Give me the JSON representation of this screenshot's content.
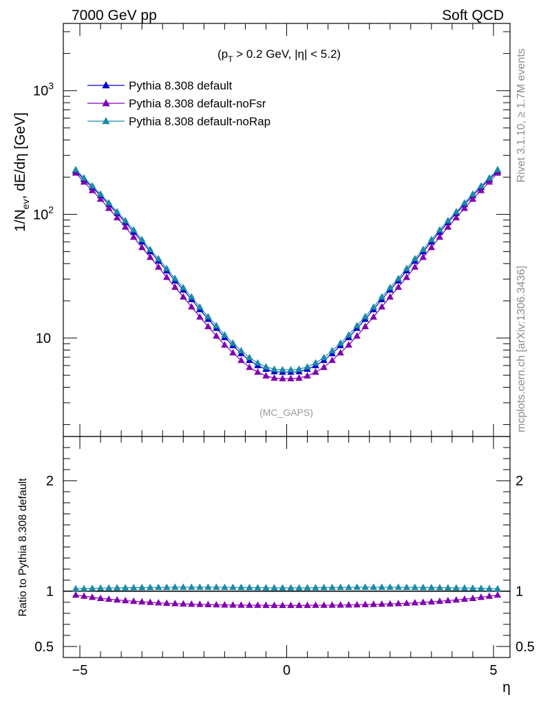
{
  "header": {
    "left": "7000 GeV pp",
    "right": "Soft QCD"
  },
  "side_text": {
    "rivet": "Rivet 3.1.10, ≥ 1.7M events",
    "mcplots": "mcplots.cern.ch [arXiv:1306.3436]"
  },
  "chart_data": [
    {
      "type": "line",
      "panel": "main",
      "annotation": "(p_T > 0.2 GeV, |η| < 5.2)",
      "watermark": "(MC_GAPS)",
      "ylabel": "1/N_ev, dE/dη [GeV]",
      "xlim": [
        -5.4,
        5.4
      ],
      "ylim": [
        1.6,
        3500
      ],
      "yscale": "log",
      "yticklabels": [
        "10",
        "10^2",
        "10^3"
      ],
      "legend_position": "top-left",
      "x": [
        -5.1,
        -4.9,
        -4.7,
        -4.5,
        -4.3,
        -4.1,
        -3.9,
        -3.7,
        -3.5,
        -3.3,
        -3.1,
        -2.9,
        -2.7,
        -2.5,
        -2.3,
        -2.1,
        -1.9,
        -1.7,
        -1.5,
        -1.3,
        -1.1,
        -0.9,
        -0.7,
        -0.5,
        -0.3,
        -0.1,
        0.1,
        0.3,
        0.5,
        0.7,
        0.9,
        1.1,
        1.3,
        1.5,
        1.7,
        1.9,
        2.1,
        2.3,
        2.5,
        2.7,
        2.9,
        3.1,
        3.3,
        3.5,
        3.7,
        3.9,
        4.1,
        4.3,
        4.5,
        4.7,
        4.9,
        5.1
      ],
      "series": [
        {
          "name": "Pythia 8.308 default",
          "color": "#0000cc",
          "marker": "triangle",
          "values": [
            224,
            192,
            165,
            142,
            120,
            102,
            86,
            72,
            60,
            50,
            42,
            35,
            29,
            24.5,
            20.5,
            17,
            14.2,
            12,
            10.1,
            8.7,
            7.5,
            6.6,
            6.0,
            5.6,
            5.35,
            5.3,
            5.3,
            5.35,
            5.6,
            6.0,
            6.6,
            7.5,
            8.7,
            10.1,
            12,
            14.2,
            17,
            20.5,
            24.5,
            29,
            35,
            42,
            50,
            60,
            72,
            86,
            102,
            120,
            142,
            165,
            192,
            224
          ]
        },
        {
          "name": "Pythia 8.308 default-noFsr",
          "color": "#8000b0",
          "marker": "triangle",
          "values": [
            216,
            183,
            156,
            133,
            112,
            94,
            79,
            65.5,
            54,
            45,
            37.5,
            31,
            25.8,
            21.5,
            17.9,
            14.8,
            12.4,
            10.4,
            8.8,
            7.6,
            6.6,
            5.8,
            5.3,
            4.95,
            4.75,
            4.7,
            4.7,
            4.75,
            4.95,
            5.3,
            5.8,
            6.6,
            7.6,
            8.8,
            10.4,
            12.4,
            14.8,
            17.9,
            21.5,
            25.8,
            31,
            37.5,
            45,
            54,
            65.5,
            79,
            94,
            112,
            133,
            156,
            183,
            216
          ]
        },
        {
          "name": "Pythia 8.308 default-noRap",
          "color": "#1a8aa8",
          "marker": "triangle",
          "values": [
            230,
            197,
            170,
            146,
            124,
            105,
            89,
            75,
            62.5,
            52,
            43.8,
            36.5,
            30.3,
            25.6,
            21.5,
            17.8,
            14.9,
            12.6,
            10.6,
            9.1,
            7.9,
            6.95,
            6.3,
            5.85,
            5.6,
            5.55,
            5.55,
            5.6,
            5.85,
            6.3,
            6.95,
            7.9,
            9.1,
            10.6,
            12.6,
            14.9,
            17.8,
            21.5,
            25.6,
            30.3,
            36.5,
            43.8,
            52,
            62.5,
            75,
            89,
            105,
            124,
            146,
            170,
            197,
            230
          ]
        }
      ]
    },
    {
      "type": "line",
      "panel": "ratio",
      "xlabel": "η",
      "ylabel": "Ratio to Pythia 8.308 default",
      "xlim": [
        -5.4,
        5.4
      ],
      "ylim": [
        0.4,
        2.4
      ],
      "xticks": [
        -5,
        0,
        5
      ],
      "yticks": [
        0.5,
        1,
        2
      ],
      "x": [
        -5.1,
        -4.9,
        -4.7,
        -4.5,
        -4.3,
        -4.1,
        -3.9,
        -3.7,
        -3.5,
        -3.3,
        -3.1,
        -2.9,
        -2.7,
        -2.5,
        -2.3,
        -2.1,
        -1.9,
        -1.7,
        -1.5,
        -1.3,
        -1.1,
        -0.9,
        -0.7,
        -0.5,
        -0.3,
        -0.1,
        0.1,
        0.3,
        0.5,
        0.7,
        0.9,
        1.1,
        1.3,
        1.5,
        1.7,
        1.9,
        2.1,
        2.3,
        2.5,
        2.7,
        2.9,
        3.1,
        3.3,
        3.5,
        3.7,
        3.9,
        4.1,
        4.3,
        4.5,
        4.7,
        4.9,
        5.1
      ],
      "series": [
        {
          "name": "Pythia 8.308 default",
          "color": "#0000cc",
          "reference": true,
          "values": [
            1,
            1,
            1,
            1,
            1,
            1,
            1,
            1,
            1,
            1,
            1,
            1,
            1,
            1,
            1,
            1,
            1,
            1,
            1,
            1,
            1,
            1,
            1,
            1,
            1,
            1,
            1,
            1,
            1,
            1,
            1,
            1,
            1,
            1,
            1,
            1,
            1,
            1,
            1,
            1,
            1,
            1,
            1,
            1,
            1,
            1,
            1,
            1,
            1,
            1,
            1,
            1
          ]
        },
        {
          "name": "Pythia 8.308 default-noFsr",
          "color": "#8000b0",
          "marker": "triangle",
          "values": [
            0.965,
            0.955,
            0.945,
            0.935,
            0.928,
            0.921,
            0.915,
            0.909,
            0.904,
            0.899,
            0.895,
            0.891,
            0.888,
            0.885,
            0.883,
            0.881,
            0.879,
            0.877,
            0.876,
            0.875,
            0.874,
            0.873,
            0.873,
            0.872,
            0.872,
            0.872,
            0.872,
            0.872,
            0.872,
            0.873,
            0.873,
            0.874,
            0.875,
            0.876,
            0.877,
            0.879,
            0.881,
            0.883,
            0.885,
            0.888,
            0.891,
            0.895,
            0.899,
            0.904,
            0.909,
            0.915,
            0.921,
            0.928,
            0.935,
            0.945,
            0.955,
            0.965
          ]
        },
        {
          "name": "Pythia 8.308 default-noRap",
          "color": "#1a8aa8",
          "marker": "triangle",
          "values": [
            1.022,
            1.024,
            1.026,
            1.028,
            1.029,
            1.03,
            1.031,
            1.032,
            1.033,
            1.034,
            1.035,
            1.035,
            1.036,
            1.036,
            1.036,
            1.036,
            1.036,
            1.036,
            1.035,
            1.035,
            1.034,
            1.033,
            1.032,
            1.031,
            1.03,
            1.03,
            1.03,
            1.03,
            1.031,
            1.032,
            1.033,
            1.034,
            1.035,
            1.035,
            1.036,
            1.036,
            1.036,
            1.036,
            1.036,
            1.036,
            1.035,
            1.035,
            1.034,
            1.033,
            1.032,
            1.031,
            1.03,
            1.029,
            1.028,
            1.026,
            1.024,
            1.022
          ]
        }
      ]
    }
  ]
}
